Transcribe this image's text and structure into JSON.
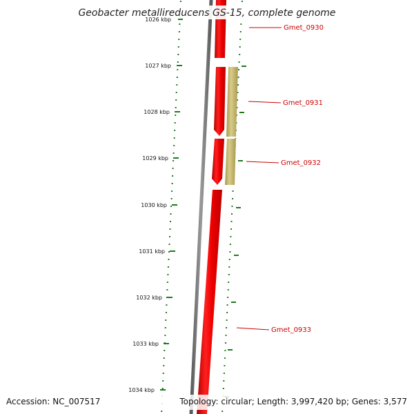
{
  "title": "Geobacter metallireducens GS-15, complete genome",
  "scale": {
    "top_partial_label": "1026 kbp",
    "ticks": [
      {
        "label": "1027 kbp"
      },
      {
        "label": "1028 kbp"
      },
      {
        "label": "1029 kbp"
      },
      {
        "label": "1030 kbp"
      },
      {
        "label": "1031 kbp"
      },
      {
        "label": "1032 kbp"
      },
      {
        "label": "1033 kbp"
      },
      {
        "label": "1034 kbp"
      }
    ]
  },
  "genes": [
    {
      "name": "Gmet_0930",
      "strand": "reverse",
      "color": "#ee0000"
    },
    {
      "name": "Gmet_0931",
      "strand": "reverse",
      "color": "#ee0000"
    },
    {
      "name": "Gmet_0932",
      "strand": "reverse",
      "color": "#ee0000"
    },
    {
      "name": "Gmet_0933",
      "strand": "reverse",
      "color": "#ee0000"
    }
  ],
  "features": [
    {
      "type": "other",
      "color": "#c8b970"
    }
  ],
  "colors": {
    "backbone": "#7a7a7a",
    "gene": "#ee0000",
    "feature": "#c8b970",
    "tick": "#1a7a1a",
    "label": "#cc0000"
  },
  "footer": {
    "accession": "Accession: NC_007517",
    "topology": "Topology: circular; Length: 3,997,420 bp; Genes: 3,577"
  }
}
